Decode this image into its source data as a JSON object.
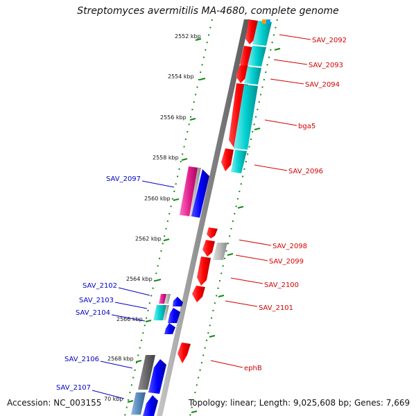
{
  "title": "Streptomyces avermitilis MA-4680, complete genome",
  "footer": {
    "accession": "Accession: NC_003155",
    "summary": "Topology: linear; Length: 9,025,608 bp; Genes: 7,669"
  },
  "scale_ticks": [
    "2552 kbp",
    "2554 kbp",
    "2556 kbp",
    "2558 kbp",
    "2560 kbp",
    "2562 kbp",
    "2564 kbp",
    "2566 kbp",
    "2568 kbp",
    "70 kbp"
  ],
  "colors": {
    "forward_label": "#d40000",
    "reverse_label": "#0000c8",
    "red_gene": "#ff0000",
    "blue_gene": "#0000ff",
    "cyan_gene": "#00c8c8",
    "magenta_gene": "#e0208c",
    "grey_gene": "#b0b0b0",
    "dark_grey_gene": "#666666",
    "steel_gene": "#5a8cbe",
    "tick_green": "#118811"
  },
  "right_labels": [
    "SAV_2092",
    "SAV_2093",
    "SAV_2094",
    "bga5",
    "SAV_2096",
    "SAV_2098",
    "SAV_2099",
    "SAV_2100",
    "SAV_2101",
    "ephB"
  ],
  "left_labels": [
    "SAV_2097",
    "SAV_2102",
    "SAV_2103",
    "SAV_2104",
    "SAV_2106",
    "SAV_2107"
  ]
}
